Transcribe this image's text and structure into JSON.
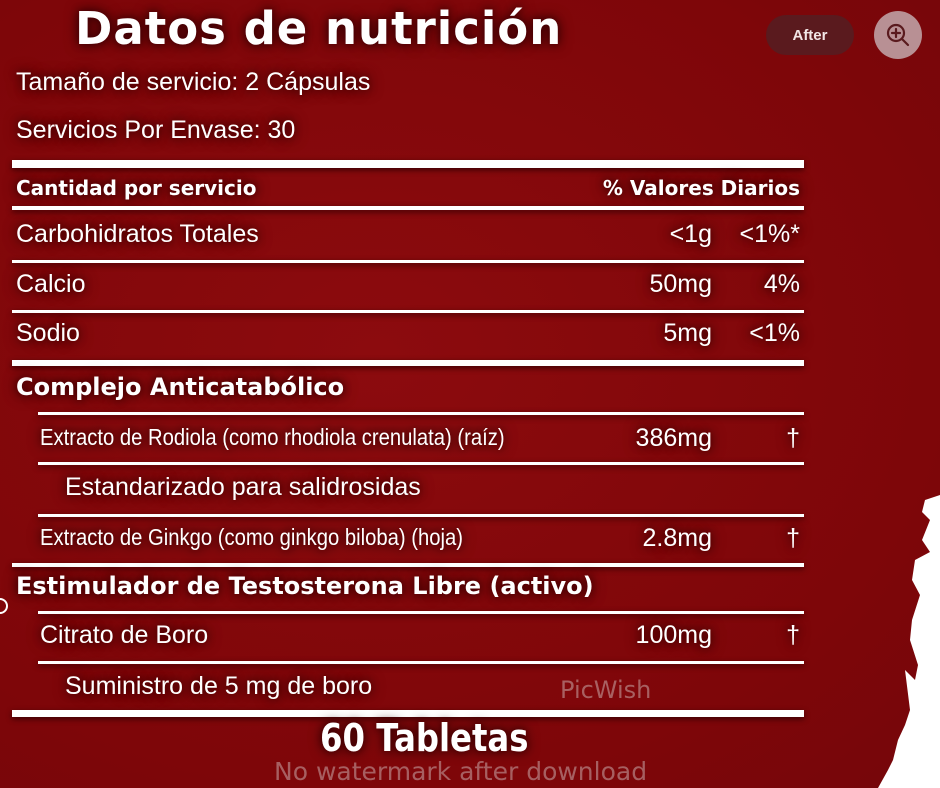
{
  "title": "Datos de nutrición",
  "serving_size": "Tamaño de servicio: 2 Cápsulas",
  "servings": "Servicios Por Envase: 30",
  "header": {
    "left": "Cantidad por servicio",
    "right": "% Valores Diarios"
  },
  "rows": [
    {
      "name": "Carbohidratos Totales",
      "amount": "<1g",
      "dv": "<1%*"
    },
    {
      "name": "Calcio",
      "amount": "50mg",
      "dv": "4%"
    },
    {
      "name": "Sodio",
      "amount": "5mg",
      "dv": "<1%"
    }
  ],
  "sections": [
    {
      "title": "Complejo Anticatabólico",
      "items": [
        {
          "name": "Extracto de Rodiola (como rhodiola crenulata) (raíz)",
          "amount": "386mg",
          "dv": "†",
          "note": "Estandarizado para salidrosidas"
        },
        {
          "name": "Extracto de Ginkgo (como ginkgo biloba) (hoja)",
          "amount": "2.8mg",
          "dv": "†"
        }
      ]
    },
    {
      "title": "Estimulador de Testosterona Libre (activo)",
      "items": [
        {
          "name": "Citrato de Boro",
          "amount": "100mg",
          "dv": "†",
          "note": "Suministro de 5 mg de boro"
        }
      ]
    }
  ],
  "footer": "60 Tabletas",
  "toolbar": {
    "after_label": "After",
    "zoom_icon": "zoom-in-icon"
  },
  "watermark": {
    "brand": "PicWish",
    "text": "No watermark after download"
  },
  "colors": {
    "background": "#820709",
    "text": "#ffffff"
  }
}
